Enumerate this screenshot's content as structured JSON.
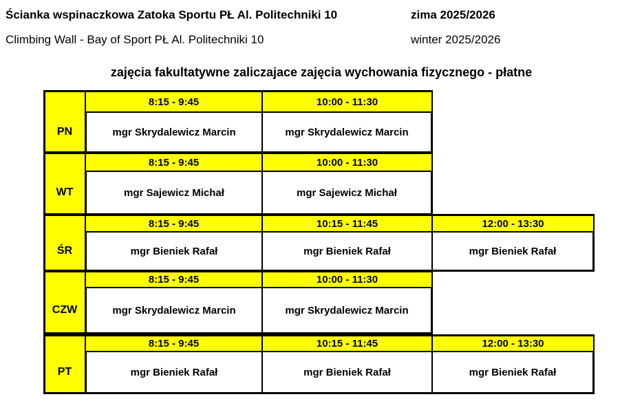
{
  "header": {
    "title_pl": "Ścianka wspinaczkowa Zatoka Sportu PŁ Al. Politechniki 10",
    "term_pl": "zima 2025/2026",
    "title_en": "Climbing Wall - Bay of Sport PŁ Al. Politechniki 10",
    "term_en": "winter 2025/2026",
    "subtitle": "zajęcia fakultatywne zaliczajace zajęcia wychowania fizycznego - płatne"
  },
  "colors": {
    "highlight": "#ffff00",
    "border": "#000000"
  },
  "schedule": [
    {
      "day": "PN",
      "slots": [
        {
          "time": "8:15 - 9:45",
          "instructor": "mgr Skrydalewicz Marcin"
        },
        {
          "time": "10:00 - 11:30",
          "instructor": "mgr Skrydalewicz Marcin"
        }
      ]
    },
    {
      "day": "WT",
      "slots": [
        {
          "time": "8:15 - 9:45",
          "instructor": "mgr Sajewicz Michał"
        },
        {
          "time": "10:00 - 11:30",
          "instructor": "mgr Sajewicz Michał"
        }
      ]
    },
    {
      "day": "ŚR",
      "slots": [
        {
          "time": "8:15 - 9:45",
          "instructor": "mgr Bieniek Rafał"
        },
        {
          "time": "10:15 - 11:45",
          "instructor": "mgr Bieniek Rafał"
        },
        {
          "time": "12:00 - 13:30",
          "instructor": "mgr Bieniek Rafał"
        }
      ]
    },
    {
      "day": "CZW",
      "slots": [
        {
          "time": "8:15 - 9:45",
          "instructor": "mgr Skrydalewicz Marcin"
        },
        {
          "time": "10:00 - 11:30",
          "instructor": "mgr Skrydalewicz Marcin"
        }
      ]
    },
    {
      "day": "PT",
      "slots": [
        {
          "time": "8:15 - 9:45",
          "instructor": "mgr Bieniek Rafał"
        },
        {
          "time": "10:15 - 11:45",
          "instructor": "mgr Bieniek Rafał"
        },
        {
          "time": "12:00 - 13:30",
          "instructor": "mgr Bieniek Rafał"
        }
      ]
    }
  ]
}
